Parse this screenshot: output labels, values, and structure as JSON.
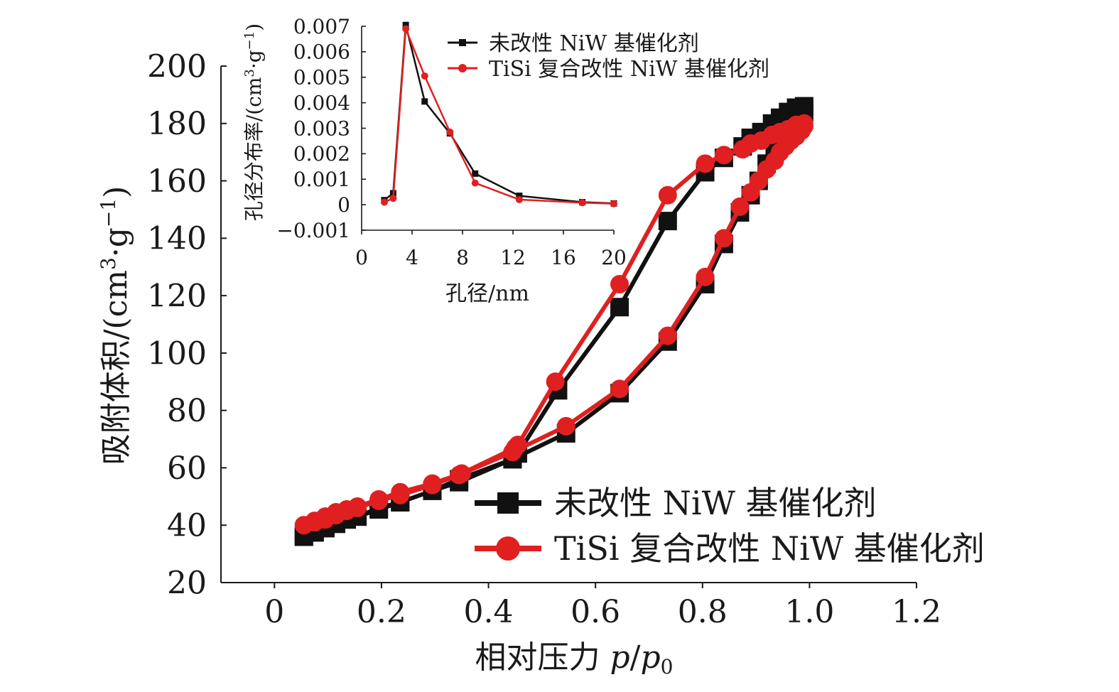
{
  "chart_data": [
    {
      "type": "line",
      "title": "",
      "xlabel": "相对压力 p/p0",
      "xlabel_parts": {
        "prefix": "相对压力 ",
        "p": "p",
        "slash": "/",
        "p0": "p",
        "sub": "0"
      },
      "ylabel": "吸附体积/(cm3·g−1)",
      "ylabel_parts": {
        "prefix": "吸附体积/(cm",
        "sup1": "3",
        "mid": "·g",
        "sup2": "−1",
        "suffix": ")"
      },
      "xlim": [
        -0.1,
        1.2
      ],
      "ylim": [
        20,
        200
      ],
      "x_ticks": [
        0,
        0.2,
        0.4,
        0.6,
        0.8,
        1.0,
        1.2
      ],
      "x_tick_labels": [
        "0",
        "0.2",
        "0.4",
        "0.6",
        "0.8",
        "1.0",
        "1.2"
      ],
      "y_ticks": [
        20,
        40,
        60,
        80,
        100,
        120,
        140,
        160,
        180,
        200
      ],
      "y_tick_labels": [
        "20",
        "40",
        "60",
        "80",
        "100",
        "120",
        "140",
        "160",
        "180",
        "200"
      ],
      "legend_position": "lower-right",
      "series": [
        {
          "name": "未改性 NiW 基催化剂",
          "color": "#111111",
          "marker": "square",
          "x": [
            0.055,
            0.075,
            0.095,
            0.115,
            0.135,
            0.155,
            0.195,
            0.235,
            0.295,
            0.345,
            0.445,
            0.455,
            0.53,
            0.645,
            0.735,
            0.805,
            0.84,
            0.875,
            0.89,
            0.91,
            0.93,
            0.945,
            0.96,
            0.975,
            0.99,
            0.99,
            0.985,
            0.975,
            0.965,
            0.955,
            0.945,
            0.935,
            0.92,
            0.905,
            0.89,
            0.87,
            0.84,
            0.805,
            0.735,
            0.645,
            0.545,
            0.445,
            0.345,
            0.295,
            0.235,
            0.195,
            0.155,
            0.135,
            0.115,
            0.095,
            0.075,
            0.055
          ],
          "y": [
            36,
            37.5,
            39,
            40.5,
            42,
            43,
            45.5,
            48,
            52,
            55,
            63,
            65,
            87,
            116,
            146,
            163,
            168,
            172,
            175,
            177,
            180,
            182,
            184,
            185.5,
            186,
            184,
            182,
            180,
            178,
            176,
            173,
            170,
            166,
            160,
            155,
            149,
            138,
            124,
            104,
            86,
            72,
            63,
            56,
            52,
            48,
            46,
            43,
            42,
            40.5,
            39,
            37.5,
            36
          ]
        },
        {
          "name": "TiSi 复合改性 NiW 基催化剂",
          "color": "#e02020",
          "marker": "circle",
          "x": [
            0.055,
            0.075,
            0.095,
            0.115,
            0.135,
            0.155,
            0.195,
            0.235,
            0.295,
            0.35,
            0.45,
            0.455,
            0.525,
            0.645,
            0.735,
            0.805,
            0.84,
            0.875,
            0.89,
            0.91,
            0.93,
            0.945,
            0.96,
            0.975,
            0.99,
            0.99,
            0.985,
            0.975,
            0.965,
            0.955,
            0.945,
            0.935,
            0.92,
            0.905,
            0.89,
            0.87,
            0.84,
            0.805,
            0.735,
            0.645,
            0.545,
            0.445,
            0.345,
            0.295,
            0.235,
            0.195,
            0.155,
            0.135,
            0.115,
            0.095,
            0.075,
            0.055
          ],
          "y": [
            40,
            41.5,
            43,
            44.5,
            45.5,
            46.5,
            49,
            51.5,
            54.5,
            58,
            67,
            68,
            90,
            124,
            155,
            166,
            169,
            171,
            173,
            174,
            176,
            177,
            178,
            179.5,
            180,
            179,
            177.5,
            175.5,
            174,
            172,
            170,
            167,
            164,
            160,
            156,
            151,
            140,
            126.5,
            106,
            87.5,
            74.5,
            65.5,
            57.5,
            54,
            50.5,
            48.5,
            46,
            45,
            43.5,
            42,
            41,
            40
          ]
        }
      ]
    },
    {
      "type": "line",
      "title": "",
      "xlabel": "孔径/nm",
      "ylabel": "孔径分布率/(cm3·g−1)",
      "ylabel_parts": {
        "prefix": "孔径分布率/(cm",
        "sup1": "3",
        "mid": "·g",
        "sup2": "−1",
        "suffix": ")"
      },
      "xlim": [
        0,
        20
      ],
      "ylim": [
        -0.001,
        0.007
      ],
      "x_ticks": [
        0,
        4,
        8,
        12,
        16,
        20
      ],
      "x_tick_labels": [
        "0",
        "4",
        "8",
        "12",
        "16",
        "20"
      ],
      "y_ticks": [
        -0.001,
        0,
        0.001,
        0.002,
        0.003,
        0.004,
        0.005,
        0.006,
        0.007
      ],
      "y_tick_labels": [
        "−0.001",
        "0",
        "0.001",
        "0.002",
        "0.003",
        "0.004",
        "0.005",
        "0.006",
        "0.007"
      ],
      "legend_position": "top-right",
      "series": [
        {
          "name": "未改性 NiW 基催化剂",
          "color": "#111111",
          "marker": "square",
          "x": [
            1.8,
            2.5,
            3.5,
            5,
            7,
            9,
            12.5,
            17.5,
            20
          ],
          "y": [
            0.00018,
            0.00045,
            0.00705,
            0.00405,
            0.0028,
            0.00122,
            0.00035,
            0.0001,
            5e-05
          ]
        },
        {
          "name": "TiSi 复合改性 NiW 基催化剂",
          "color": "#e02020",
          "marker": "circle",
          "x": [
            1.8,
            2.5,
            3.5,
            5,
            7,
            9,
            12.5,
            17.5,
            20
          ],
          "y": [
            0.0001,
            0.00025,
            0.0069,
            0.00505,
            0.00285,
            0.00085,
            0.0002,
            8e-05,
            4e-05
          ]
        }
      ]
    }
  ]
}
